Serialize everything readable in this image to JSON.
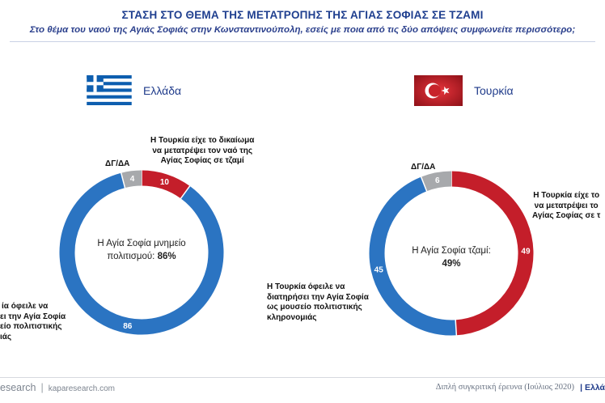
{
  "header": {
    "title": "ΣΤΑΣΗ ΣΤΟ ΘΕΜΑ ΤΗΣ ΜΕΤΑΤΡΟΠΗΣ ΤΗΣ ΑΓΙΑΣ ΣΟΦΙΑΣ ΣΕ ΤΖΑΜΙ",
    "subtitle": "Στο θέμα του ναού της Αγιάς Σοφιάς στην Κωνσταντινούπολη, εσείς με ποια από τις δύο απόψεις συμφωνείτε περισσότερο;"
  },
  "colors": {
    "blue": "#2b74c2",
    "red": "#c41e2a",
    "gray": "#a7a9ac",
    "title": "#1f3f8f"
  },
  "chart_data": [
    {
      "type": "pie",
      "donut": true,
      "country": "Ελλάδα",
      "flag_icon": "greece-flag-icon",
      "center_lines": [
        "Η Αγία Σοφία μνημείο",
        "πολιτισμού:"
      ],
      "center_value": "86%",
      "slices": [
        {
          "value": 10,
          "label": "10",
          "color": "#c41e2a",
          "text": [
            "Η Τουρκία είχε το δικαίωμα",
            "να μετατρέψει τον ναό της",
            "Αγίας Σοφίας σε τζαμί"
          ]
        },
        {
          "value": 86,
          "label": "86",
          "color": "#2b74c2",
          "text": [
            "ία όφειλε να",
            "ει την Αγία Σοφία",
            "είο πολιτιστικής",
            "ιάς"
          ]
        },
        {
          "value": 4,
          "label": "4",
          "color": "#a7a9ac",
          "text": [
            "ΔΓ/ΔΑ"
          ]
        }
      ]
    },
    {
      "type": "pie",
      "donut": true,
      "country": "Τουρκία",
      "flag_icon": "turkey-flag-icon",
      "center_lines": [
        "Η Αγία Σοφία τζαμί:"
      ],
      "center_value": "49%",
      "slices": [
        {
          "value": 49,
          "label": "49",
          "color": "#c41e2a",
          "text": [
            "Η Τουρκία είχε το",
            "να μετατρέψει το",
            "Αγίας Σοφίας σε τ"
          ]
        },
        {
          "value": 45,
          "label": "45",
          "color": "#2b74c2",
          "text": [
            "Η Τουρκία όφειλε να",
            "διατηρήσει την Αγία Σοφία",
            "ως μουσείο πολιτιστικής",
            "κληρονομιάς"
          ]
        },
        {
          "value": 6,
          "label": "6",
          "color": "#a7a9ac",
          "text": [
            "ΔΓ/ΔΑ"
          ]
        }
      ]
    }
  ],
  "footer": {
    "brand": "esearch",
    "site": "kaparesearch.com",
    "note": "Διπλή συγκριτική έρευνα (Ιούλιος 2020)",
    "country": "Ελλά"
  }
}
